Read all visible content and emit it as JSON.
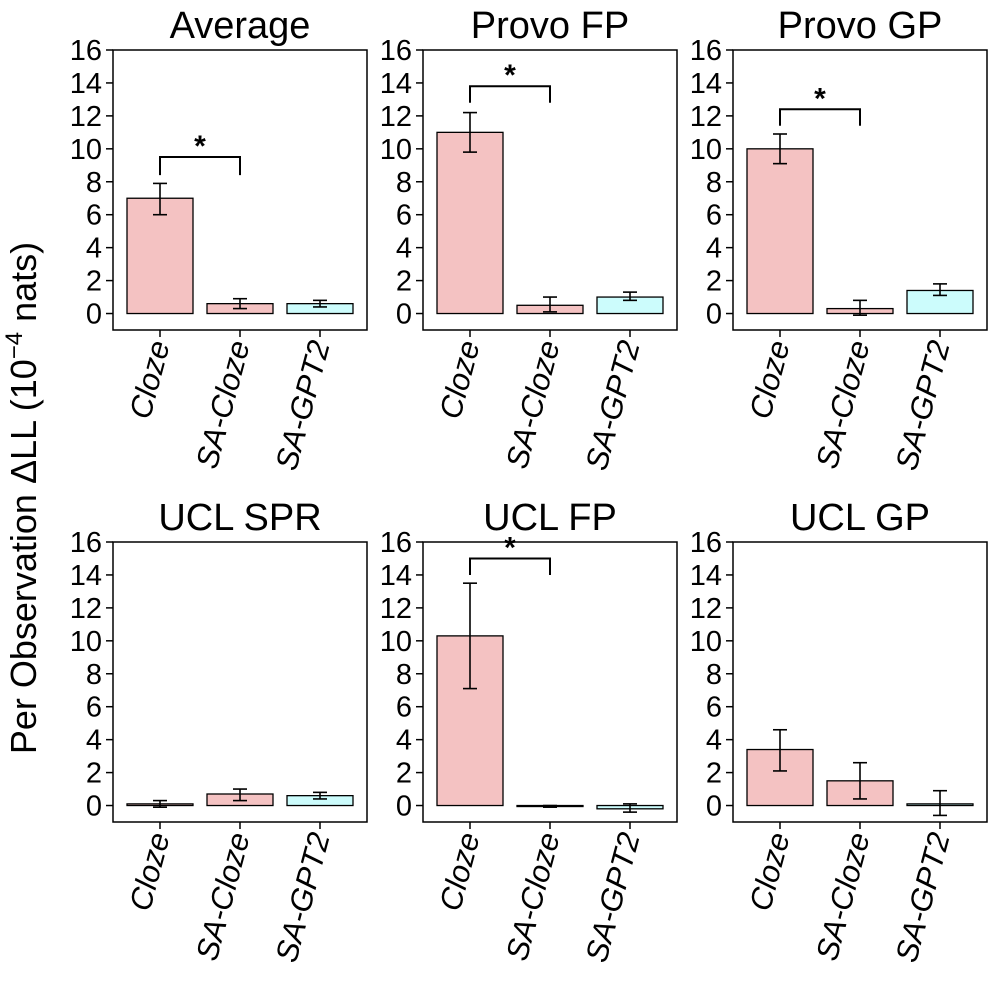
{
  "chart_data": {
    "type": "bar",
    "ylabel": "Per Observation ΔLL (10",
    "ylabel_exponent": "−4",
    "ylabel_unit": " nats)",
    "categories": [
      "Cloze",
      "SA-Cloze",
      "SA-GPT2"
    ],
    "ylim": [
      -1,
      16
    ],
    "yticks": [
      "0",
      "2",
      "4",
      "6",
      "8",
      "10",
      "12",
      "14",
      "16"
    ],
    "colors": {
      "Cloze": "#f4c2c2",
      "SA-Cloze": "#f4c2c2",
      "SA-GPT2": "#ccfcfc"
    },
    "panels": [
      {
        "title": "Average",
        "values": [
          7.0,
          0.6,
          0.6
        ],
        "err_low": [
          6.0,
          0.3,
          0.4
        ],
        "err_high": [
          7.9,
          0.9,
          0.8
        ],
        "significance": {
          "from": 0,
          "to": 1,
          "label": "*",
          "y": 9.5,
          "drop": 1.1
        }
      },
      {
        "title": "Provo FP",
        "values": [
          11.0,
          0.5,
          1.0
        ],
        "err_low": [
          9.8,
          0.1,
          0.8
        ],
        "err_high": [
          12.2,
          1.0,
          1.3
        ],
        "significance": {
          "from": 0,
          "to": 1,
          "label": "*",
          "y": 13.8,
          "drop": 1.0
        }
      },
      {
        "title": "Provo GP",
        "values": [
          10.0,
          0.3,
          1.4
        ],
        "err_low": [
          9.1,
          -0.1,
          1.1
        ],
        "err_high": [
          10.9,
          0.8,
          1.8
        ],
        "significance": {
          "from": 0,
          "to": 1,
          "label": "*",
          "y": 12.4,
          "drop": 1.0
        }
      },
      {
        "title": "UCL SPR",
        "values": [
          0.1,
          0.7,
          0.6
        ],
        "err_low": [
          -0.1,
          0.3,
          0.4
        ],
        "err_high": [
          0.3,
          1.0,
          0.8
        ],
        "significance": null
      },
      {
        "title": "UCL FP",
        "values": [
          10.3,
          -0.05,
          -0.2
        ],
        "err_low": [
          7.1,
          -0.1,
          -0.4
        ],
        "err_high": [
          13.5,
          0.0,
          0.1
        ],
        "significance": {
          "from": 0,
          "to": 1,
          "label": "*",
          "y": 15.0,
          "drop": 1.0
        }
      },
      {
        "title": "UCL GP",
        "values": [
          3.4,
          1.5,
          0.1
        ],
        "err_low": [
          2.1,
          0.4,
          -0.6
        ],
        "err_high": [
          4.6,
          2.6,
          0.9
        ],
        "significance": null
      }
    ]
  }
}
